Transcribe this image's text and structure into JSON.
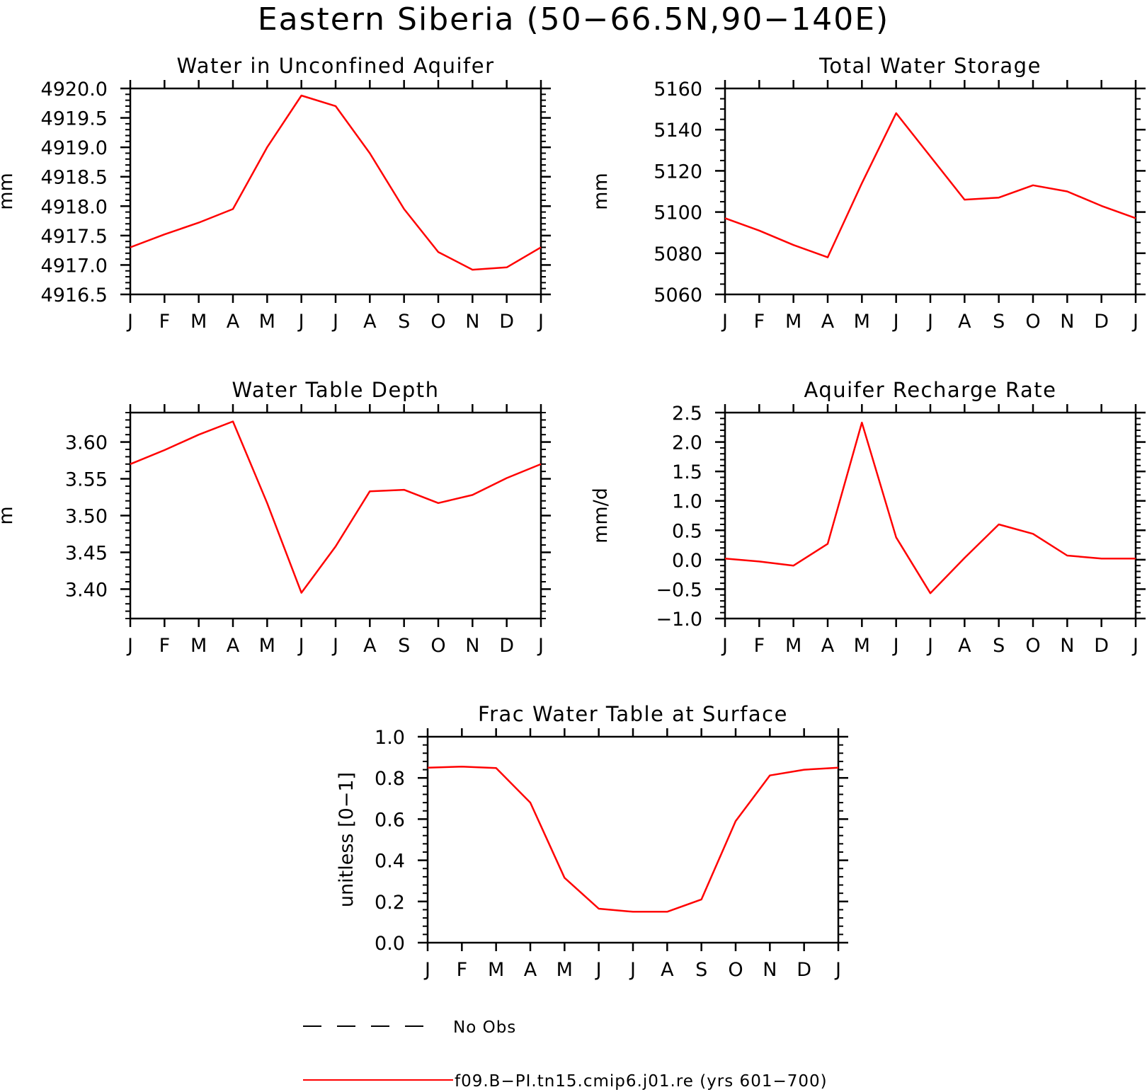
{
  "title": "Eastern Siberia (50−66.5N,90−140E)",
  "colors": {
    "series": "#ff0000",
    "axis": "#000000",
    "background": "#ffffff"
  },
  "legend": {
    "placement": "bottom",
    "items": [
      {
        "label": "No Obs",
        "style": "dashed",
        "color": "#000000"
      },
      {
        "label": "f09.B−PI.tn15.cmip6.j01.re (yrs 601−700)",
        "style": "solid",
        "color": "#ff0000"
      }
    ]
  },
  "chart_data": [
    {
      "type": "line",
      "title": "Water in Unconfined Aquifer",
      "ylabel": "mm",
      "categories": [
        "J",
        "F",
        "M",
        "A",
        "M",
        "J",
        "J",
        "A",
        "S",
        "O",
        "N",
        "D",
        "J"
      ],
      "ylim": [
        4916.5,
        4920.0
      ],
      "yticks": [
        "4916.5",
        "4917.0",
        "4917.5",
        "4918.0",
        "4918.5",
        "4919.0",
        "4919.5",
        "4920.0"
      ],
      "series": [
        {
          "name": "f09.B−PI.tn15.cmip6.j01.re (yrs 601−700)",
          "values": [
            4917.3,
            4917.52,
            4917.72,
            4917.95,
            4919.0,
            4919.88,
            4919.7,
            4918.9,
            4917.95,
            4917.22,
            4916.92,
            4916.96,
            4917.3
          ]
        }
      ]
    },
    {
      "type": "line",
      "title": "Total Water Storage",
      "ylabel": "mm",
      "categories": [
        "J",
        "F",
        "M",
        "A",
        "M",
        "J",
        "J",
        "A",
        "S",
        "O",
        "N",
        "D",
        "J"
      ],
      "ylim": [
        5060,
        5160
      ],
      "yticks": [
        "5060",
        "5080",
        "5100",
        "5120",
        "5140",
        "5160"
      ],
      "series": [
        {
          "name": "f09.B−PI.tn15.cmip6.j01.re (yrs 601−700)",
          "values": [
            5097,
            5091,
            5084,
            5078,
            5114,
            5148,
            5127,
            5106,
            5107,
            5113,
            5110,
            5103,
            5097
          ]
        }
      ]
    },
    {
      "type": "line",
      "title": "Water Table Depth",
      "ylabel": "m",
      "categories": [
        "J",
        "F",
        "M",
        "A",
        "M",
        "J",
        "J",
        "A",
        "S",
        "O",
        "N",
        "D",
        "J"
      ],
      "ylim": [
        3.36,
        3.64
      ],
      "yticks": [
        "3.40",
        "3.45",
        "3.50",
        "3.55",
        "3.60"
      ],
      "series": [
        {
          "name": "f09.B−PI.tn15.cmip6.j01.re (yrs 601−700)",
          "values": [
            3.57,
            3.589,
            3.61,
            3.628,
            3.517,
            3.395,
            3.458,
            3.533,
            3.535,
            3.517,
            3.528,
            3.551,
            3.57
          ]
        }
      ]
    },
    {
      "type": "line",
      "title": "Aquifer Recharge Rate",
      "ylabel": "mm/d",
      "categories": [
        "J",
        "F",
        "M",
        "A",
        "M",
        "J",
        "J",
        "A",
        "S",
        "O",
        "N",
        "D",
        "J"
      ],
      "ylim": [
        -1.0,
        2.5
      ],
      "yticks": [
        "−1.0",
        "−0.5",
        "0.0",
        "0.5",
        "1.0",
        "1.5",
        "2.0",
        "2.5"
      ],
      "series": [
        {
          "name": "f09.B−PI.tn15.cmip6.j01.re (yrs 601−700)",
          "values": [
            0.02,
            -0.03,
            -0.1,
            0.27,
            2.33,
            0.38,
            -0.57,
            0.03,
            0.6,
            0.44,
            0.07,
            0.02,
            0.02
          ]
        }
      ]
    },
    {
      "type": "line",
      "title": "Frac Water Table at Surface",
      "ylabel": "unitless [0−1]",
      "categories": [
        "J",
        "F",
        "M",
        "A",
        "M",
        "J",
        "J",
        "A",
        "S",
        "O",
        "N",
        "D",
        "J"
      ],
      "ylim": [
        0.0,
        1.0
      ],
      "yticks": [
        "0.0",
        "0.2",
        "0.4",
        "0.6",
        "0.8",
        "1.0"
      ],
      "series": [
        {
          "name": "f09.B−PI.tn15.cmip6.j01.re (yrs 601−700)",
          "values": [
            0.85,
            0.855,
            0.848,
            0.68,
            0.315,
            0.165,
            0.15,
            0.15,
            0.21,
            0.59,
            0.812,
            0.84,
            0.85
          ]
        }
      ]
    }
  ]
}
